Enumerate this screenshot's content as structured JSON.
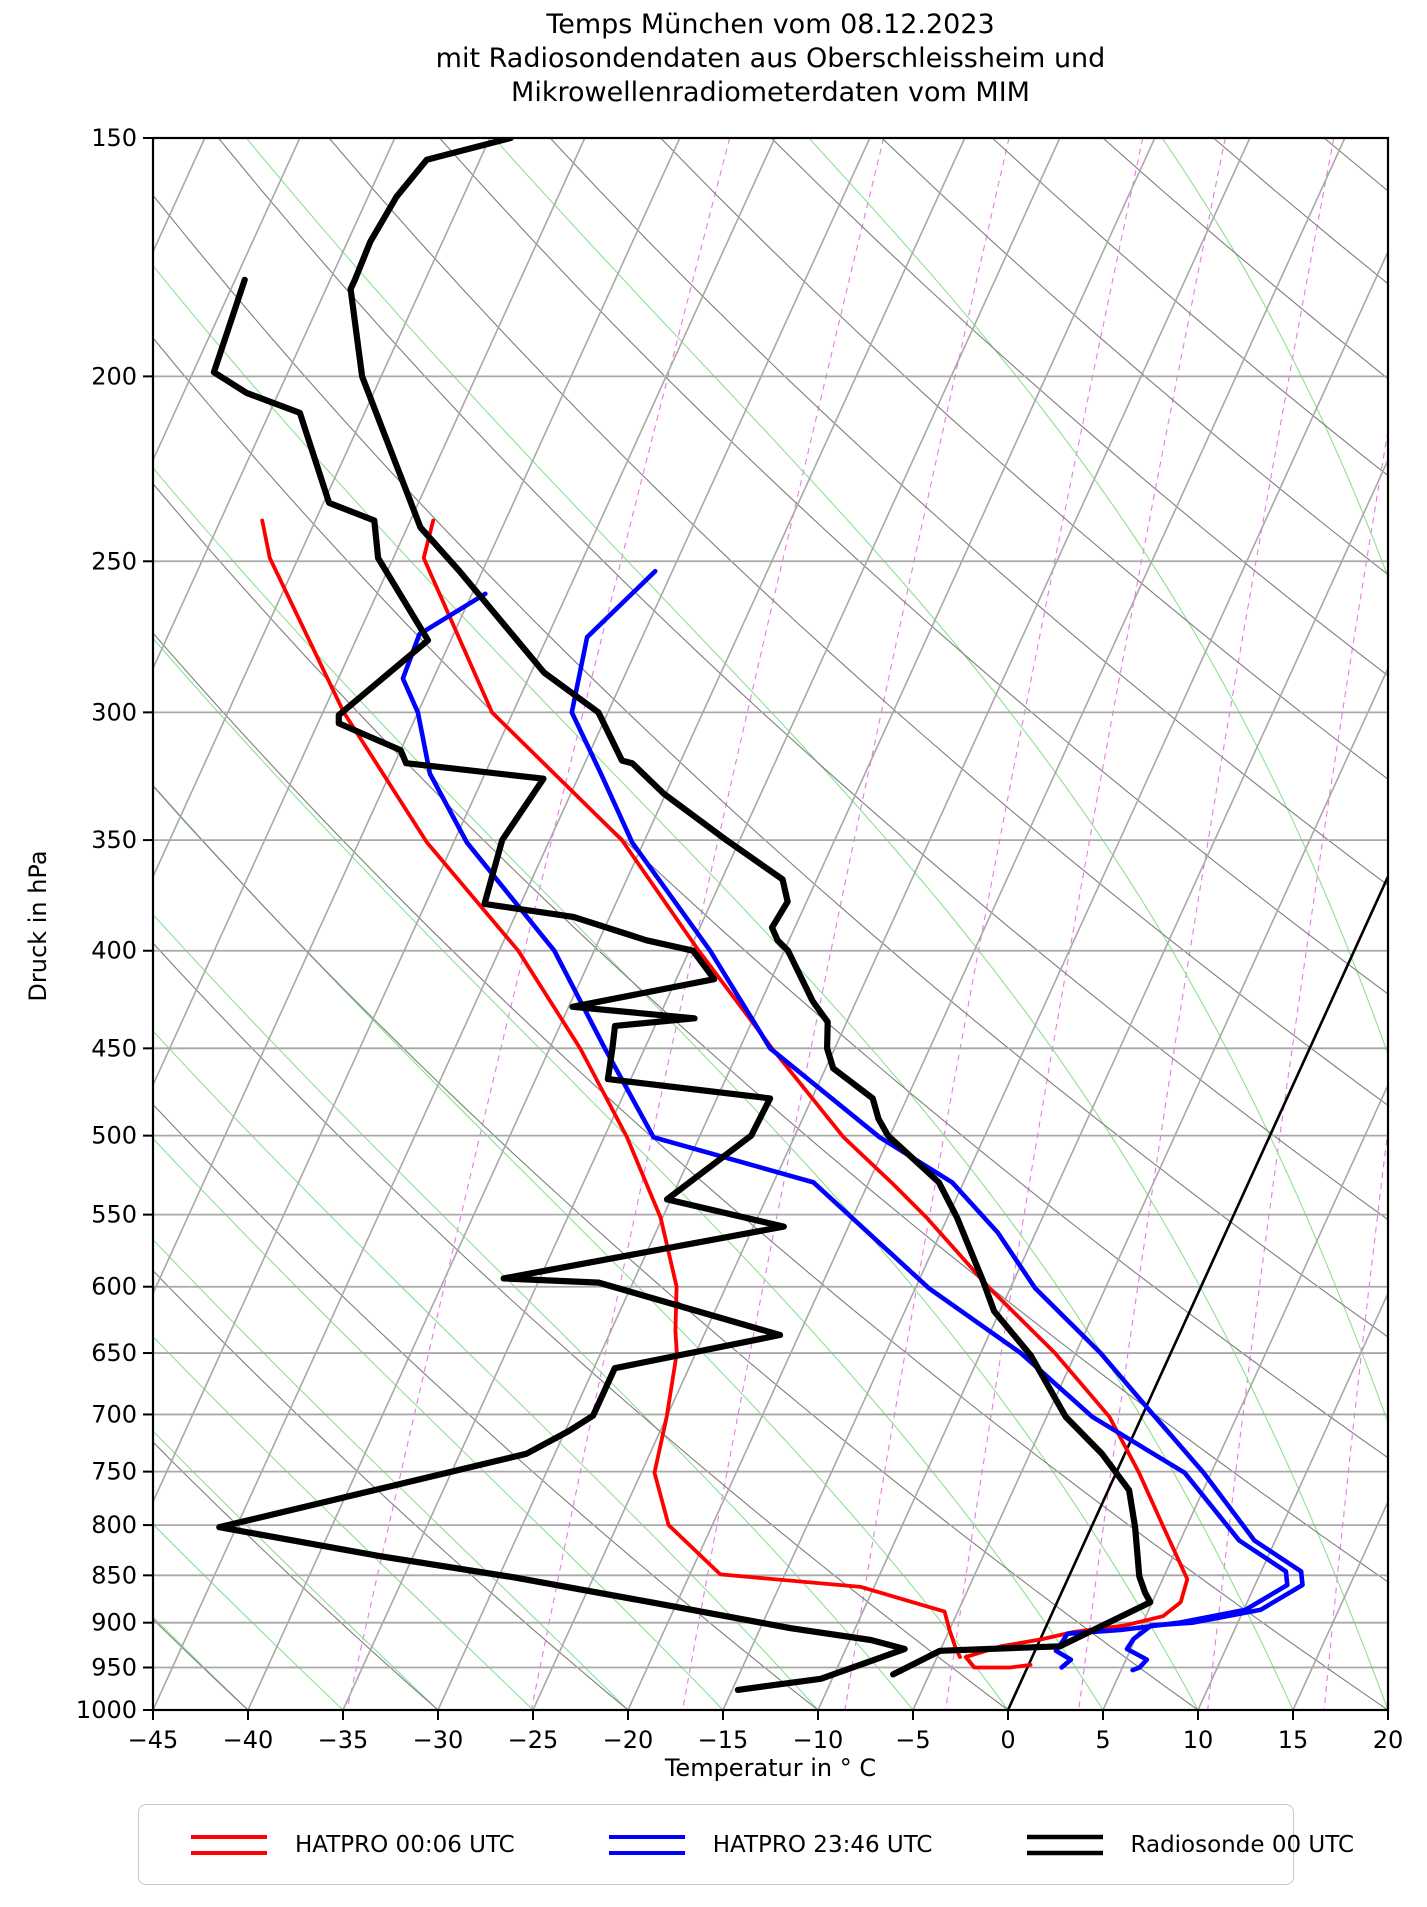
{
  "chart_data": {
    "type": "line",
    "subtype": "skewT-logP",
    "title_lines": [
      "Temps München vom 08.12.2023",
      "mit Radiosondendaten aus Oberschleissheim und",
      "Mikrowellenradiometerdaten vom MIM"
    ],
    "xlabel": "Temperatur in ° C",
    "ylabel": "Druck in hPa",
    "x_axis": {
      "min": -45,
      "max": 20,
      "tick_step": 5,
      "tick_values": [
        -45,
        -40,
        -35,
        -30,
        -25,
        -20,
        -15,
        -10,
        -5,
        0,
        5,
        10,
        15,
        20
      ],
      "tick_labels": [
        "−45",
        "−40",
        "−35",
        "−30",
        "−25",
        "−20",
        "−15",
        "−10",
        "−5",
        "0",
        "5",
        "10",
        "15",
        "20"
      ]
    },
    "y_axis": {
      "min": 150,
      "max": 1000,
      "scale": "log",
      "tick_values": [
        150,
        200,
        250,
        300,
        350,
        400,
        450,
        500,
        550,
        600,
        650,
        700,
        750,
        800,
        850,
        900,
        950,
        1000
      ],
      "tick_labels": [
        "150",
        "200",
        "250",
        "300",
        "350",
        "400",
        "450",
        "500",
        "550",
        "600",
        "650",
        "700",
        "750",
        "800",
        "850",
        "900",
        "950",
        "1000"
      ]
    },
    "grid": {
      "isobars": {
        "values": [
          150,
          200,
          250,
          300,
          350,
          400,
          450,
          500,
          550,
          600,
          650,
          700,
          750,
          800,
          850,
          900,
          950,
          1000
        ],
        "color": "#a8a8a8",
        "width": 1.8
      },
      "isotherms": {
        "min": -100,
        "max": 25,
        "step": 5,
        "color": "#a8a8a8",
        "width": 1.6,
        "highlight_value": 0,
        "highlight_color": "#000000",
        "highlight_width": 2.6
      },
      "dry_adiabats": {
        "min": -40,
        "max": 170,
        "step": 10,
        "color": "#7e7e7e",
        "width": 1.1
      },
      "moist_adiabats": {
        "min": -40,
        "max": 40,
        "step": 5,
        "color": "#8fe08f",
        "width": 1.1
      },
      "mixing_ratio_lines": {
        "values_g_kg": [
          0.2,
          0.5,
          1,
          2,
          3,
          5,
          8,
          12,
          20,
          30
        ],
        "color": "#e87ae8",
        "width": 1.1,
        "dash": "6 5"
      }
    },
    "series": [
      {
        "name": "HATPRO 00:06 UTC",
        "color": "#ff0000",
        "width": 3.8,
        "temperature": [
          [
            -58.8,
            238
          ],
          [
            -58.4,
            249
          ],
          [
            -51.1,
            300
          ],
          [
            -41.2,
            350
          ],
          [
            -34.5,
            400
          ],
          [
            -28.3,
            450
          ],
          [
            -22.4,
            501
          ],
          [
            -18.8,
            529
          ],
          [
            -16.1,
            552
          ],
          [
            -11.1,
            601
          ],
          [
            -6.1,
            650
          ],
          [
            -1.7,
            702
          ],
          [
            1.2,
            751
          ],
          [
            3.7,
            800
          ],
          [
            6.3,
            854
          ],
          [
            6.5,
            878
          ],
          [
            5.9,
            893
          ],
          [
            4.1,
            903
          ],
          [
            1.6,
            910
          ],
          [
            0.1,
            918
          ],
          [
            -1.9,
            926
          ],
          [
            -3.5,
            938
          ],
          [
            -2.8,
            950
          ],
          [
            -0.9,
            950
          ],
          [
            0.1,
            947
          ]
        ],
        "dewpoint": [
          [
            -67.8,
            238
          ],
          [
            -66.5,
            249
          ],
          [
            -58.9,
            300
          ],
          [
            -51.4,
            351
          ],
          [
            -44.0,
            400
          ],
          [
            -38.4,
            450
          ],
          [
            -33.8,
            501
          ],
          [
            -30.1,
            552
          ],
          [
            -27.6,
            600
          ],
          [
            -26.6,
            633
          ],
          [
            -26.0,
            650
          ],
          [
            -25.0,
            702
          ],
          [
            -24.3,
            751
          ],
          [
            -22.3,
            800
          ],
          [
            -18.4,
            849
          ],
          [
            -10.7,
            862
          ],
          [
            -5.7,
            888
          ],
          [
            -5.0,
            908
          ],
          [
            -4.2,
            929
          ],
          [
            -3.8,
            938
          ]
        ]
      },
      {
        "name": "HATPRO 23:46 UTC",
        "color": "#0000ff",
        "width": 4.6,
        "temperature": [
          [
            -45.9,
            253
          ],
          [
            -47.9,
            274
          ],
          [
            -46.9,
            300
          ],
          [
            -43.9,
            323
          ],
          [
            -40.6,
            351
          ],
          [
            -33.9,
            400
          ],
          [
            -28.4,
            450
          ],
          [
            -20.5,
            501
          ],
          [
            -15.6,
            529
          ],
          [
            -12.0,
            562
          ],
          [
            -8.7,
            601
          ],
          [
            -3.7,
            650
          ],
          [
            0.7,
            702
          ],
          [
            4.6,
            751
          ],
          [
            8.9,
            815
          ],
          [
            12.1,
            846
          ],
          [
            12.5,
            860
          ],
          [
            10.9,
            886
          ],
          [
            7.6,
            900
          ],
          [
            5.5,
            903
          ],
          [
            4.9,
            918
          ],
          [
            4.8,
            929
          ],
          [
            6.1,
            941
          ],
          [
            5.9,
            950
          ],
          [
            5.6,
            953
          ]
        ],
        "dewpoint": [
          [
            -54.3,
            260
          ],
          [
            -56.8,
            273
          ],
          [
            -56.6,
            288
          ],
          [
            -55.0,
            300
          ],
          [
            -52.9,
            323
          ],
          [
            -49.3,
            351
          ],
          [
            -42.1,
            400
          ],
          [
            -37.1,
            450
          ],
          [
            -32.4,
            501
          ],
          [
            -22.9,
            529
          ],
          [
            -14.3,
            601
          ],
          [
            -7.9,
            650
          ],
          [
            -2.6,
            702
          ],
          [
            3.6,
            751
          ],
          [
            8.1,
            815
          ],
          [
            11.3,
            846
          ],
          [
            11.7,
            860
          ],
          [
            10.1,
            886
          ],
          [
            6.9,
            900
          ],
          [
            4.0,
            908
          ],
          [
            1.3,
            912
          ],
          [
            1.2,
            923
          ],
          [
            1.1,
            931
          ],
          [
            2.1,
            941
          ],
          [
            1.8,
            950
          ]
        ]
      },
      {
        "name": "Radiosonde 00 UTC",
        "color": "#000000",
        "width": 6.2,
        "temperature": [
          [
            -63.9,
            150
          ],
          [
            -67.8,
            154
          ],
          [
            -68.5,
            161
          ],
          [
            -68.8,
            170
          ],
          [
            -68.7,
            178
          ],
          [
            -68.7,
            180
          ],
          [
            -66.0,
            200
          ],
          [
            -59.3,
            240
          ],
          [
            -56.2,
            253
          ],
          [
            -49.3,
            286
          ],
          [
            -45.5,
            300
          ],
          [
            -43.1,
            318
          ],
          [
            -42.5,
            319
          ],
          [
            -40.1,
            331
          ],
          [
            -35.7,
            350
          ],
          [
            -31.8,
            367
          ],
          [
            -31.0,
            377
          ],
          [
            -31.2,
            389
          ],
          [
            -30.6,
            395
          ],
          [
            -29.8,
            400
          ],
          [
            -27.3,
            425
          ],
          [
            -26.0,
            436
          ],
          [
            -25.4,
            450
          ],
          [
            -24.6,
            461
          ],
          [
            -21.8,
            478
          ],
          [
            -21.0,
            490
          ],
          [
            -20.1,
            500
          ],
          [
            -16.3,
            529
          ],
          [
            -14.5,
            552
          ],
          [
            -11.6,
            596
          ],
          [
            -10.3,
            618
          ],
          [
            -7.3,
            652
          ],
          [
            -4.0,
            702
          ],
          [
            -1.2,
            734
          ],
          [
            1.1,
            767
          ],
          [
            2.3,
            802
          ],
          [
            3.7,
            851
          ],
          [
            4.4,
            868
          ],
          [
            4.9,
            878
          ],
          [
            1.2,
            926
          ],
          [
            -5.0,
            931
          ],
          [
            -6.9,
            958
          ]
        ],
        "dewpoint": [
          [
            -74.5,
            178
          ],
          [
            -73.9,
            199
          ],
          [
            -71.7,
            204
          ],
          [
            -68.4,
            209
          ],
          [
            -64.7,
            233
          ],
          [
            -61.9,
            238
          ],
          [
            -60.8,
            249
          ],
          [
            -56.2,
            275
          ],
          [
            -59.1,
            301
          ],
          [
            -58.9,
            304
          ],
          [
            -55.0,
            314
          ],
          [
            -54.4,
            319
          ],
          [
            -46.8,
            325
          ],
          [
            -47.5,
            350
          ],
          [
            -46.9,
            378
          ],
          [
            -41.9,
            384
          ],
          [
            -37.5,
            395
          ],
          [
            -34.8,
            400
          ],
          [
            -33.0,
            414
          ],
          [
            -39.8,
            428
          ],
          [
            -33.1,
            434
          ],
          [
            -37.1,
            438
          ],
          [
            -36.7,
            450
          ],
          [
            -36.2,
            467
          ],
          [
            -27.2,
            478
          ],
          [
            -27.3,
            500
          ],
          [
            -30.2,
            540
          ],
          [
            -23.4,
            558
          ],
          [
            -36.9,
            594
          ],
          [
            -31.8,
            597
          ],
          [
            -21.0,
            636
          ],
          [
            -28.9,
            662
          ],
          [
            -28.9,
            701
          ],
          [
            -29.8,
            714
          ],
          [
            -31.5,
            734
          ],
          [
            -45.9,
            802
          ],
          [
            -36.6,
            831
          ],
          [
            -29.2,
            852
          ],
          [
            -21.4,
            878
          ],
          [
            -13.4,
            906
          ],
          [
            -8.9,
            919
          ],
          [
            -6.9,
            929
          ],
          [
            -10.6,
            963
          ],
          [
            -14.7,
            976
          ]
        ]
      }
    ],
    "legend": {
      "position": "bottom",
      "entries": [
        "HATPRO 00:06 UTC",
        "HATPRO 23:46 UTC",
        "Radiosonde 00 UTC"
      ]
    }
  }
}
